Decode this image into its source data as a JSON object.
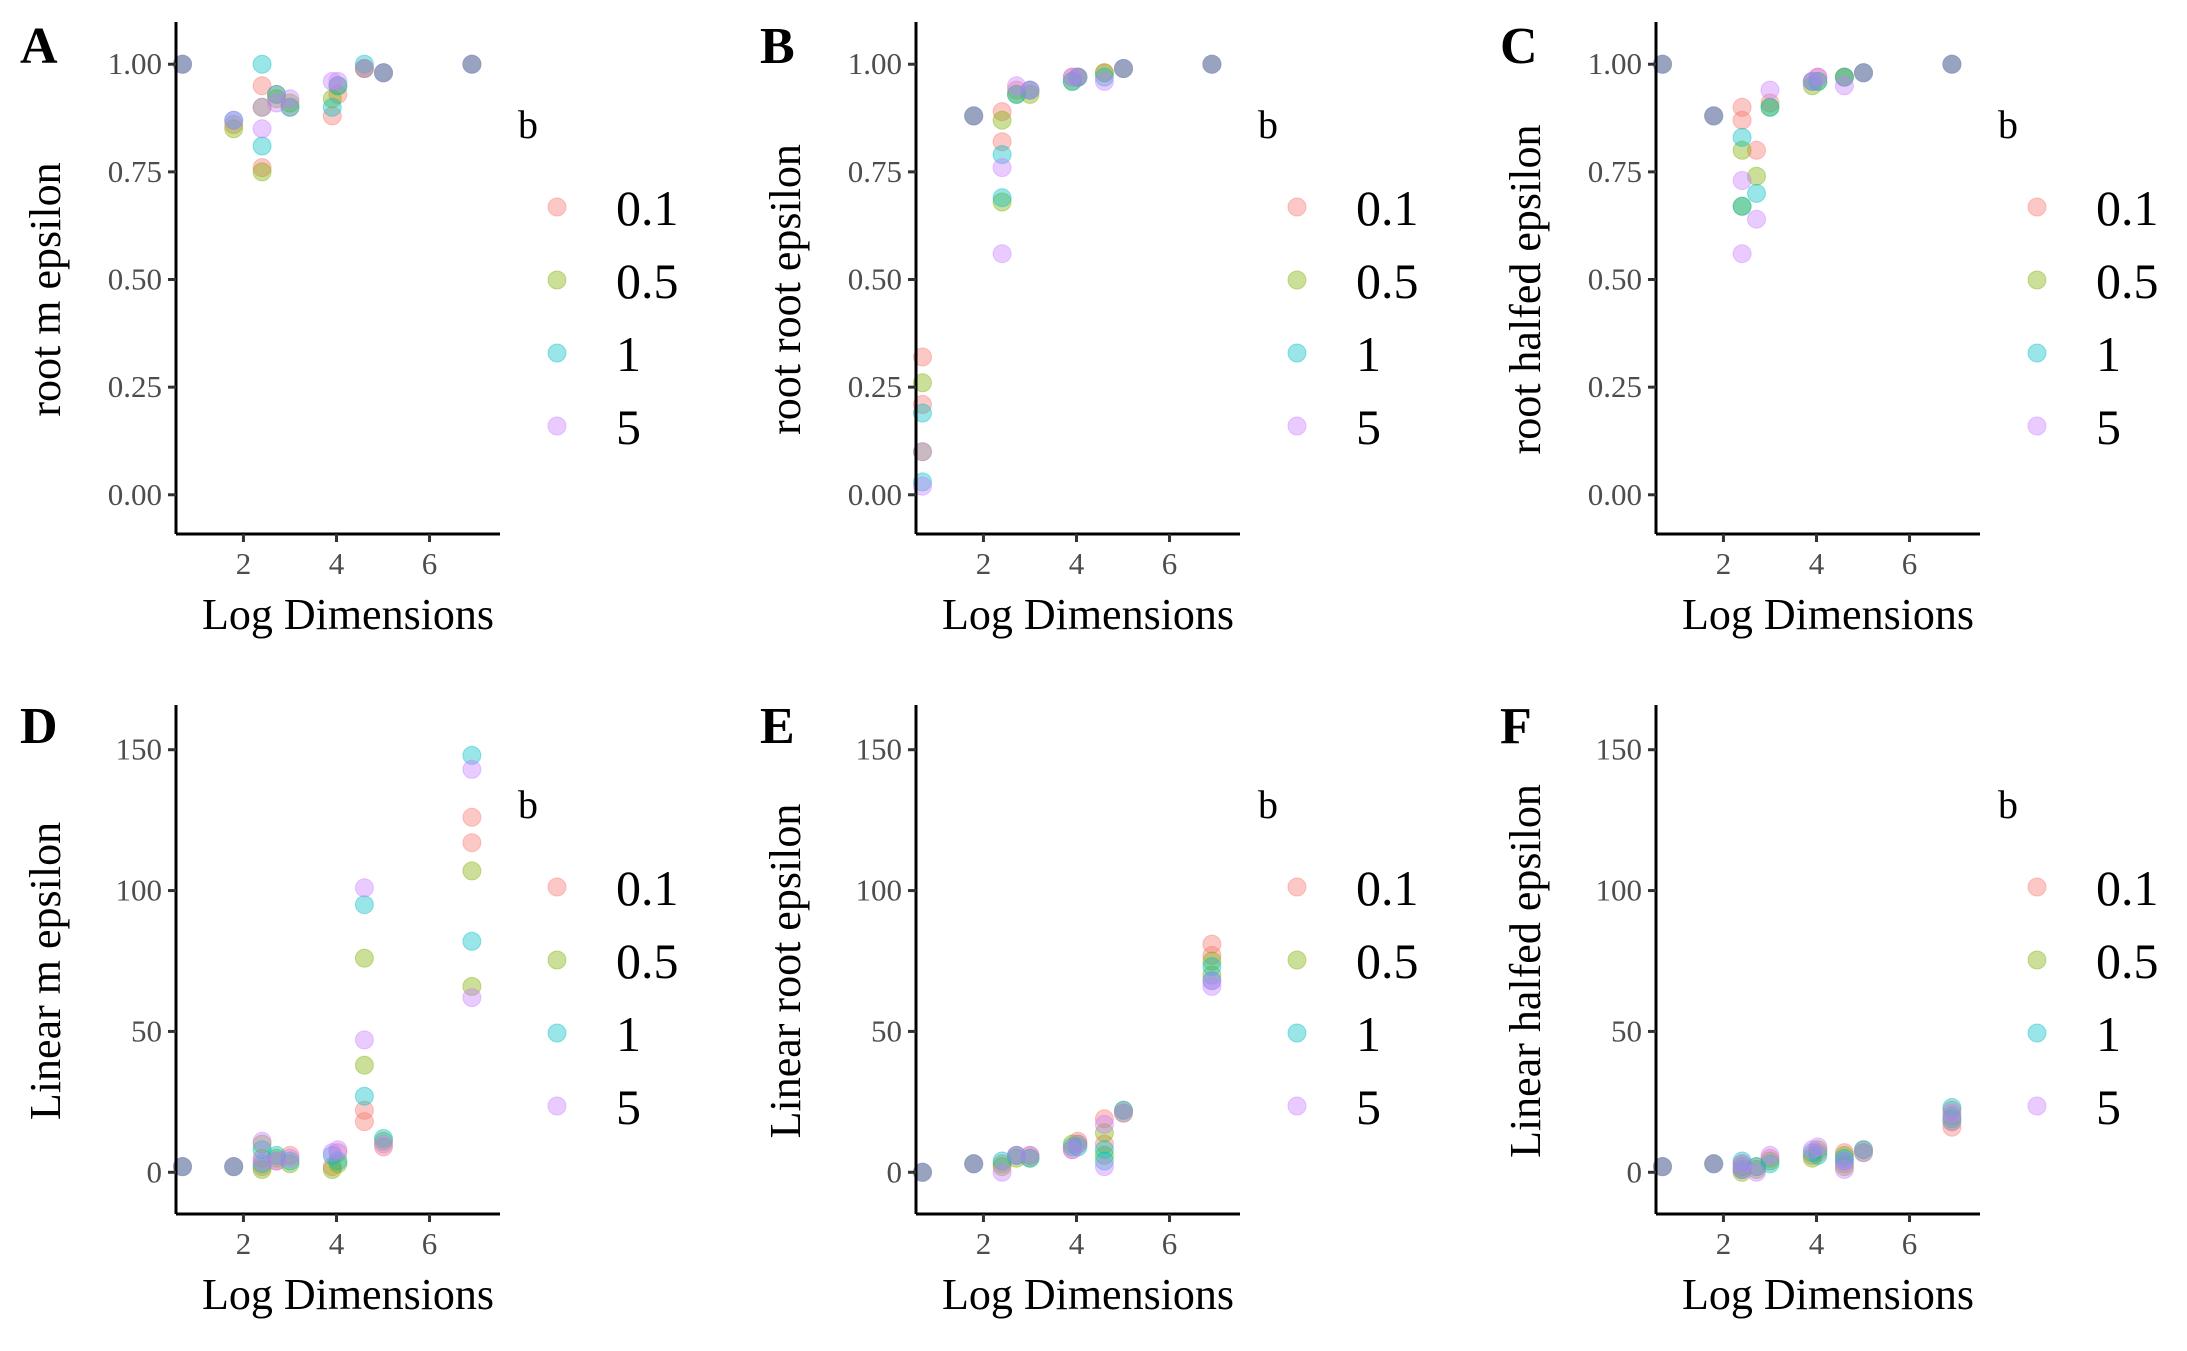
{
  "legend": {
    "title": "b",
    "levels": [
      {
        "label": "0.1",
        "color": "#F8766D"
      },
      {
        "label": "0.5",
        "color": "#7CAE00"
      },
      {
        "label": "1",
        "color": "#00BFC4"
      },
      {
        "label": "5",
        "color": "#C77CFF"
      }
    ]
  },
  "point_opacity": 0.4,
  "chart_data": [
    {
      "panel": "A",
      "type": "scatter",
      "xlabel": "Log Dimensions",
      "ylabel": "root m epsilon",
      "xlim": [
        0.55,
        7.3
      ],
      "ylim": [
        -0.04,
        1.04
      ],
      "xticks": [
        2,
        4,
        6
      ],
      "yticks": [
        0,
        0.25,
        0.5,
        0.75,
        1
      ],
      "ytick_labels": [
        "0.00",
        "0.25",
        "0.50",
        "0.75",
        "1.00"
      ],
      "x": [
        0.69,
        1.79,
        2.4,
        2.71,
        3.0,
        3.91,
        4.03,
        4.6,
        5.01,
        6.91
      ],
      "series": [
        {
          "name": "0.1",
          "y": [
            1.0,
            0.86,
            0.95,
            0.93,
            0.9,
            0.88,
            0.93,
            0.99,
            0.98,
            1.0
          ],
          "y2": [
            null,
            null,
            0.76,
            null,
            null,
            null,
            null,
            null,
            null,
            null
          ]
        },
        {
          "name": "0.5",
          "y": [
            1.0,
            0.85,
            0.9,
            0.92,
            0.91,
            0.92,
            0.95,
            0.99,
            0.98,
            1.0
          ],
          "y2": [
            null,
            null,
            0.75,
            null,
            null,
            null,
            null,
            null,
            null,
            null
          ]
        },
        {
          "name": "1",
          "y": [
            1.0,
            0.87,
            0.81,
            0.93,
            0.9,
            0.9,
            0.95,
            1.0,
            0.98,
            1.0
          ],
          "y2": [
            null,
            null,
            1.0,
            null,
            null,
            null,
            null,
            null,
            null,
            null
          ]
        },
        {
          "name": "5",
          "y": [
            1.0,
            0.87,
            0.85,
            0.91,
            0.92,
            0.96,
            0.96,
            0.99,
            0.98,
            1.0
          ],
          "y2": [
            null,
            null,
            0.9,
            null,
            null,
            null,
            null,
            null,
            null,
            null
          ]
        }
      ]
    },
    {
      "panel": "B",
      "type": "scatter",
      "xlabel": "Log Dimensions",
      "ylabel": "root root epsilon",
      "xlim": [
        0.55,
        7.3
      ],
      "ylim": [
        -0.04,
        1.04
      ],
      "xticks": [
        2,
        4,
        6
      ],
      "yticks": [
        0,
        0.25,
        0.5,
        0.75,
        1
      ],
      "ytick_labels": [
        "0.00",
        "0.25",
        "0.50",
        "0.75",
        "1.00"
      ],
      "x": [
        0.69,
        1.79,
        2.4,
        2.71,
        3.0,
        3.91,
        4.03,
        4.6,
        5.01,
        6.91
      ],
      "series": [
        {
          "name": "0.1",
          "y": [
            0.32,
            0.88,
            0.82,
            0.94,
            0.94,
            0.97,
            0.97,
            0.98,
            0.99,
            1.0
          ],
          "y2": [
            0.21,
            null,
            0.89,
            null,
            null,
            null,
            null,
            null,
            null,
            null
          ]
        },
        {
          "name": "0.5",
          "y": [
            0.26,
            0.88,
            0.68,
            0.93,
            0.93,
            0.96,
            0.97,
            0.98,
            0.99,
            1.0
          ],
          "y2": [
            0.1,
            null,
            0.87,
            null,
            null,
            null,
            null,
            null,
            null,
            null
          ]
        },
        {
          "name": "1",
          "y": [
            0.19,
            0.88,
            0.69,
            0.93,
            0.94,
            0.96,
            0.97,
            0.97,
            0.99,
            1.0
          ],
          "y2": [
            0.03,
            null,
            0.79,
            null,
            null,
            null,
            null,
            null,
            null,
            null
          ]
        },
        {
          "name": "5",
          "y": [
            0.1,
            0.88,
            0.56,
            0.95,
            0.94,
            0.97,
            0.97,
            0.96,
            0.99,
            1.0
          ],
          "y2": [
            0.02,
            null,
            0.76,
            null,
            null,
            null,
            null,
            null,
            null,
            null
          ]
        }
      ]
    },
    {
      "panel": "C",
      "type": "scatter",
      "xlabel": "Log Dimensions",
      "ylabel": "root halfed epsilon",
      "xlim": [
        0.55,
        7.3
      ],
      "ylim": [
        -0.04,
        1.04
      ],
      "xticks": [
        2,
        4,
        6
      ],
      "yticks": [
        0,
        0.25,
        0.5,
        0.75,
        1
      ],
      "ytick_labels": [
        "0.00",
        "0.25",
        "0.50",
        "0.75",
        "1.00"
      ],
      "x": [
        0.69,
        1.79,
        2.4,
        2.71,
        3.0,
        3.91,
        4.03,
        4.6,
        5.01,
        6.91
      ],
      "series": [
        {
          "name": "0.1",
          "y": [
            1.0,
            0.88,
            0.87,
            0.8,
            0.91,
            0.96,
            0.97,
            0.97,
            0.98,
            1.0
          ],
          "y2": [
            null,
            null,
            0.9,
            null,
            null,
            null,
            null,
            null,
            null,
            null
          ]
        },
        {
          "name": "0.5",
          "y": [
            1.0,
            0.88,
            0.8,
            0.74,
            0.9,
            0.95,
            0.96,
            0.97,
            0.98,
            1.0
          ],
          "y2": [
            null,
            null,
            0.67,
            null,
            null,
            null,
            null,
            null,
            null,
            null
          ]
        },
        {
          "name": "1",
          "y": [
            1.0,
            0.88,
            0.83,
            0.7,
            0.9,
            0.96,
            0.96,
            0.97,
            0.98,
            1.0
          ],
          "y2": [
            null,
            null,
            0.67,
            null,
            null,
            null,
            null,
            null,
            null,
            null
          ]
        },
        {
          "name": "5",
          "y": [
            1.0,
            0.88,
            0.73,
            0.64,
            0.94,
            0.96,
            0.97,
            0.95,
            0.98,
            1.0
          ],
          "y2": [
            null,
            null,
            0.56,
            null,
            null,
            null,
            null,
            null,
            null,
            null
          ]
        }
      ]
    },
    {
      "panel": "D",
      "type": "scatter",
      "xlabel": "Log Dimensions",
      "ylabel": "Linear m epsilon",
      "xlim": [
        0.55,
        7.3
      ],
      "ylim": [
        -7,
        157
      ],
      "xticks": [
        2,
        4,
        6
      ],
      "yticks": [
        0,
        50,
        100,
        150
      ],
      "ytick_labels": [
        "0",
        "50",
        "100",
        "150"
      ],
      "x": [
        0.69,
        1.79,
        2.4,
        2.71,
        3.0,
        3.91,
        4.03,
        4.6,
        5.01,
        6.91
      ],
      "series": [
        {
          "name": "0.1",
          "y": [
            2,
            2,
            5,
            4,
            6,
            2,
            7,
            18,
            9,
            126
          ],
          "y2": [
            null,
            null,
            2,
            null,
            null,
            null,
            null,
            22,
            null,
            117
          ]
        },
        {
          "name": "0.5",
          "y": [
            2,
            2,
            10,
            5,
            3,
            1,
            3,
            76,
            11,
            107
          ],
          "y2": [
            null,
            null,
            1,
            null,
            null,
            null,
            null,
            38,
            null,
            66
          ]
        },
        {
          "name": "1",
          "y": [
            2,
            2,
            3,
            6,
            4,
            6,
            4,
            95,
            12,
            148
          ],
          "y2": [
            null,
            null,
            8,
            null,
            null,
            null,
            null,
            27,
            null,
            82
          ]
        },
        {
          "name": "5",
          "y": [
            2,
            2,
            11,
            4,
            5,
            7,
            8,
            101,
            10,
            143
          ],
          "y2": [
            null,
            null,
            4,
            null,
            null,
            null,
            null,
            47,
            null,
            62
          ]
        }
      ]
    },
    {
      "panel": "E",
      "type": "scatter",
      "xlabel": "Log Dimensions",
      "ylabel": "Linear root epsilon",
      "xlim": [
        0.55,
        7.3
      ],
      "ylim": [
        -7,
        157
      ],
      "xticks": [
        2,
        4,
        6
      ],
      "yticks": [
        0,
        50,
        100,
        150
      ],
      "ytick_labels": [
        "0",
        "50",
        "100",
        "150"
      ],
      "x": [
        0.69,
        1.79,
        2.4,
        2.71,
        3.0,
        3.91,
        4.03,
        4.6,
        5.01,
        6.91
      ],
      "series": [
        {
          "name": "0.1",
          "y": [
            0,
            3,
            3,
            6,
            6,
            8,
            11,
            19,
            22,
            81
          ],
          "y2": [
            null,
            null,
            null,
            null,
            null,
            null,
            null,
            10,
            null,
            77
          ]
        },
        {
          "name": "0.5",
          "y": [
            0,
            3,
            2,
            5,
            5,
            10,
            10,
            14,
            21,
            75
          ],
          "y2": [
            null,
            null,
            null,
            null,
            null,
            null,
            null,
            6,
            null,
            70
          ]
        },
        {
          "name": "1",
          "y": [
            0,
            3,
            4,
            6,
            5,
            9,
            9,
            8,
            22,
            73
          ],
          "y2": [
            null,
            null,
            null,
            null,
            null,
            null,
            null,
            4,
            null,
            68
          ]
        },
        {
          "name": "5",
          "y": [
            0,
            3,
            0,
            6,
            6,
            8,
            10,
            2,
            21,
            68
          ],
          "y2": [
            null,
            null,
            null,
            null,
            null,
            null,
            null,
            17,
            null,
            66
          ]
        }
      ]
    },
    {
      "panel": "F",
      "type": "scatter",
      "xlabel": "Log Dimensions",
      "ylabel": "Linear halfed epsilon",
      "xlim": [
        0.55,
        7.3
      ],
      "ylim": [
        -7,
        157
      ],
      "xticks": [
        2,
        4,
        6
      ],
      "yticks": [
        0,
        50,
        100,
        150
      ],
      "ytick_labels": [
        "0",
        "50",
        "100",
        "150"
      ],
      "x": [
        0.69,
        1.79,
        2.4,
        2.71,
        3.0,
        3.91,
        4.03,
        4.6,
        5.01,
        6.91
      ],
      "series": [
        {
          "name": "0.1",
          "y": [
            2,
            3,
            3,
            2,
            5,
            6,
            7,
            7,
            8,
            16
          ],
          "y2": [
            null,
            null,
            1,
            null,
            null,
            null,
            null,
            3,
            null,
            22
          ]
        },
        {
          "name": "0.5",
          "y": [
            2,
            3,
            2,
            1,
            4,
            5,
            8,
            6,
            7,
            18
          ],
          "y2": [
            null,
            null,
            0,
            null,
            null,
            null,
            null,
            2,
            null,
            20
          ]
        },
        {
          "name": "1",
          "y": [
            2,
            3,
            4,
            2,
            3,
            7,
            6,
            5,
            8,
            19
          ],
          "y2": [
            null,
            null,
            1,
            null,
            null,
            null,
            null,
            4,
            null,
            23
          ]
        },
        {
          "name": "5",
          "y": [
            2,
            3,
            1,
            0,
            6,
            8,
            9,
            1,
            7,
            21
          ],
          "y2": [
            null,
            null,
            3,
            null,
            null,
            null,
            null,
            4,
            null,
            18
          ]
        }
      ]
    }
  ]
}
